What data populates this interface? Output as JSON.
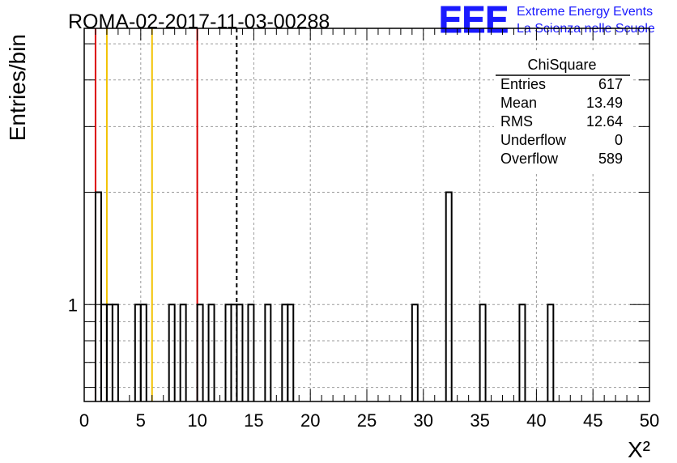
{
  "header": {
    "run_title": "ROMA-02-2017-11-03-00288",
    "logo_text": "EEE",
    "logo_line1": "Extreme Energy Events",
    "logo_line2": "La Scienza nelle Scuole",
    "logo_color": "#1a1aff"
  },
  "stats_box": {
    "title": "ChiSquare",
    "rows": [
      {
        "label": "Entries",
        "value": "617"
      },
      {
        "label": "Mean",
        "value": "13.49"
      },
      {
        "label": "RMS",
        "value": "12.64"
      },
      {
        "label": "Underflow",
        "value": "0"
      },
      {
        "label": "Overflow",
        "value": "589"
      }
    ]
  },
  "chart_data": {
    "type": "bar",
    "histogram": true,
    "log_y": true,
    "xlabel": "X²",
    "ylabel": "Entries/bin",
    "xlim": [
      0,
      50
    ],
    "ylim": [
      0.55,
      5.5
    ],
    "grid": true,
    "x_ticks": [
      "0",
      "5",
      "10",
      "15",
      "20",
      "25",
      "30",
      "35",
      "40",
      "45",
      "50"
    ],
    "y_tick_labels": [
      {
        "value": 1,
        "label": "1"
      }
    ],
    "bin_width": 0.5,
    "bins": [
      {
        "x": 1.0,
        "value": 2
      },
      {
        "x": 1.5,
        "value": 1
      },
      {
        "x": 2.0,
        "value": 1
      },
      {
        "x": 2.5,
        "value": 1
      },
      {
        "x": 4.5,
        "value": 1
      },
      {
        "x": 5.0,
        "value": 1
      },
      {
        "x": 7.5,
        "value": 1
      },
      {
        "x": 8.5,
        "value": 1
      },
      {
        "x": 10.0,
        "value": 1
      },
      {
        "x": 11.0,
        "value": 1
      },
      {
        "x": 12.5,
        "value": 1
      },
      {
        "x": 13.0,
        "value": 1
      },
      {
        "x": 13.5,
        "value": 1
      },
      {
        "x": 14.5,
        "value": 1
      },
      {
        "x": 16.0,
        "value": 1
      },
      {
        "x": 17.5,
        "value": 1
      },
      {
        "x": 18.0,
        "value": 1
      },
      {
        "x": 29.0,
        "value": 1
      },
      {
        "x": 32.0,
        "value": 2
      },
      {
        "x": 35.0,
        "value": 1
      },
      {
        "x": 38.5,
        "value": 1
      },
      {
        "x": 41.0,
        "value": 1
      }
    ],
    "reference_lines": [
      {
        "x": 1.0,
        "color": "#dd0000",
        "style": "solid"
      },
      {
        "x": 2.0,
        "color": "#f2c200",
        "style": "solid"
      },
      {
        "x": 6.0,
        "color": "#f2c200",
        "style": "solid"
      },
      {
        "x": 10.0,
        "color": "#dd0000",
        "style": "solid"
      },
      {
        "x": 13.49,
        "color": "#000000",
        "style": "dashed"
      }
    ]
  }
}
